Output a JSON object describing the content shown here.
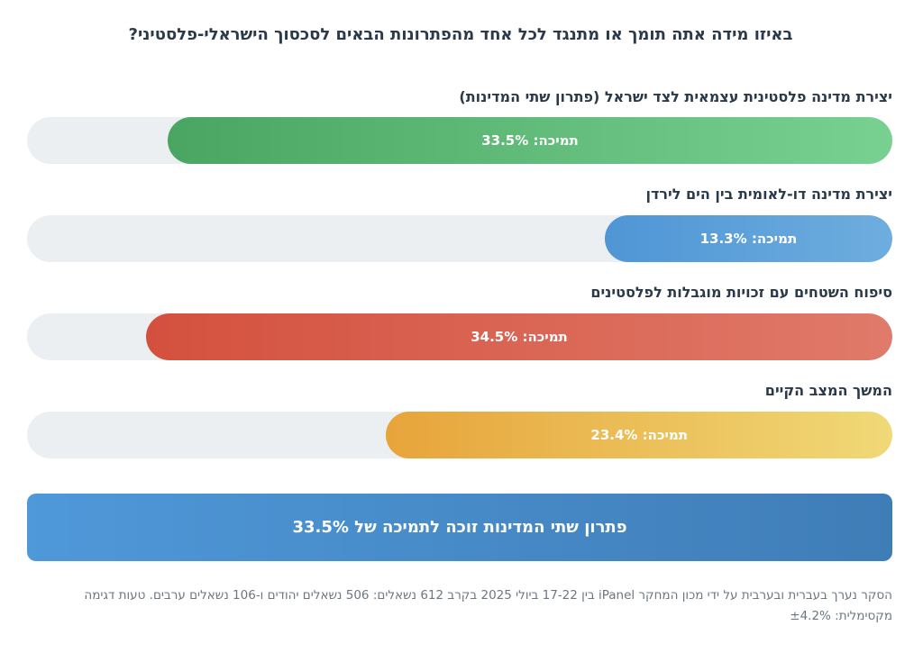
{
  "title": "באיזו מידה אתה תומך או מתנגד לכל אחד מהפתרונות הבאים לסכסוך הישראלי-פלסטיני?",
  "chart_data": {
    "type": "bar",
    "orientation": "horizontal",
    "categories": [
      "יצירת מדינה פלסטינית עצמאית לצד ישראל (פתרון שתי המדינות)",
      "יצירת מדינה דו-לאומית בין הים לירדן",
      "סיפוח השטחים עם זכויות מוגבלות לפלסטינים",
      "המשך המצב הקיים"
    ],
    "values": [
      33.5,
      13.3,
      34.5,
      23.4
    ],
    "value_prefix": "תמיכה:",
    "unit": "%",
    "value_labels": [
      "תמיכה: 33.5%",
      "תמיכה: 13.3%",
      "תמיכה: 34.5%",
      "תמיכה: 23.4%"
    ],
    "xlim": [
      0,
      40
    ],
    "colors": [
      [
        "#4aa562",
        "#79d191"
      ],
      [
        "#4f96d6",
        "#6eadde"
      ],
      [
        "#d4503e",
        "#e07a6a"
      ],
      [
        "#e7a43a",
        "#f0d977"
      ]
    ],
    "grid": false,
    "legend": "none"
  },
  "banner": {
    "text": "פתרון שתי המדינות זוכה לתמיכה של 33.5%"
  },
  "footnote": "הסקר נערך בעברית ובערבית על ידי מכון המחקר iPanel בין 17-22 ביולי 2025 בקרב 612 נשאלים: 506 נשאלים יהודים ו-106 נשאלים ערבים. טעות דגימה מקסימלית: ±4.2%"
}
